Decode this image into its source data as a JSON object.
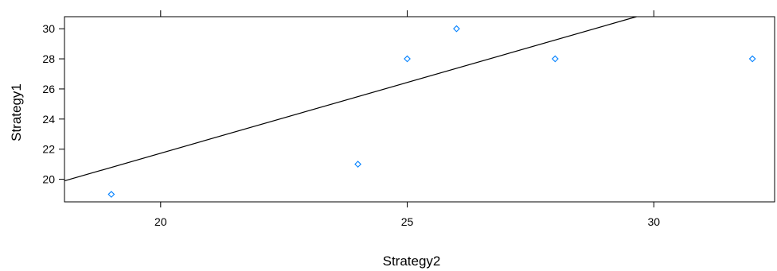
{
  "chart_data": {
    "type": "scatter",
    "title": "",
    "xlabel": "Strategy2",
    "ylabel": "Strategy1",
    "xlim": [
      18.05,
      32.45
    ],
    "ylim": [
      18.5,
      30.8
    ],
    "x_ticks_bottom": [
      20,
      25,
      30
    ],
    "x_ticks_top": [
      20,
      25,
      30
    ],
    "y_ticks": [
      20,
      22,
      24,
      26,
      28,
      30
    ],
    "points": [
      {
        "x": 19,
        "y": 19
      },
      {
        "x": 24,
        "y": 21
      },
      {
        "x": 25,
        "y": 28
      },
      {
        "x": 26,
        "y": 30
      },
      {
        "x": 28,
        "y": 28
      },
      {
        "x": 32,
        "y": 28
      }
    ],
    "fit_line": {
      "intercept": 2.93,
      "slope": 0.94
    },
    "point_color": "#0080ff",
    "line_color": "#000000",
    "grid": false
  }
}
